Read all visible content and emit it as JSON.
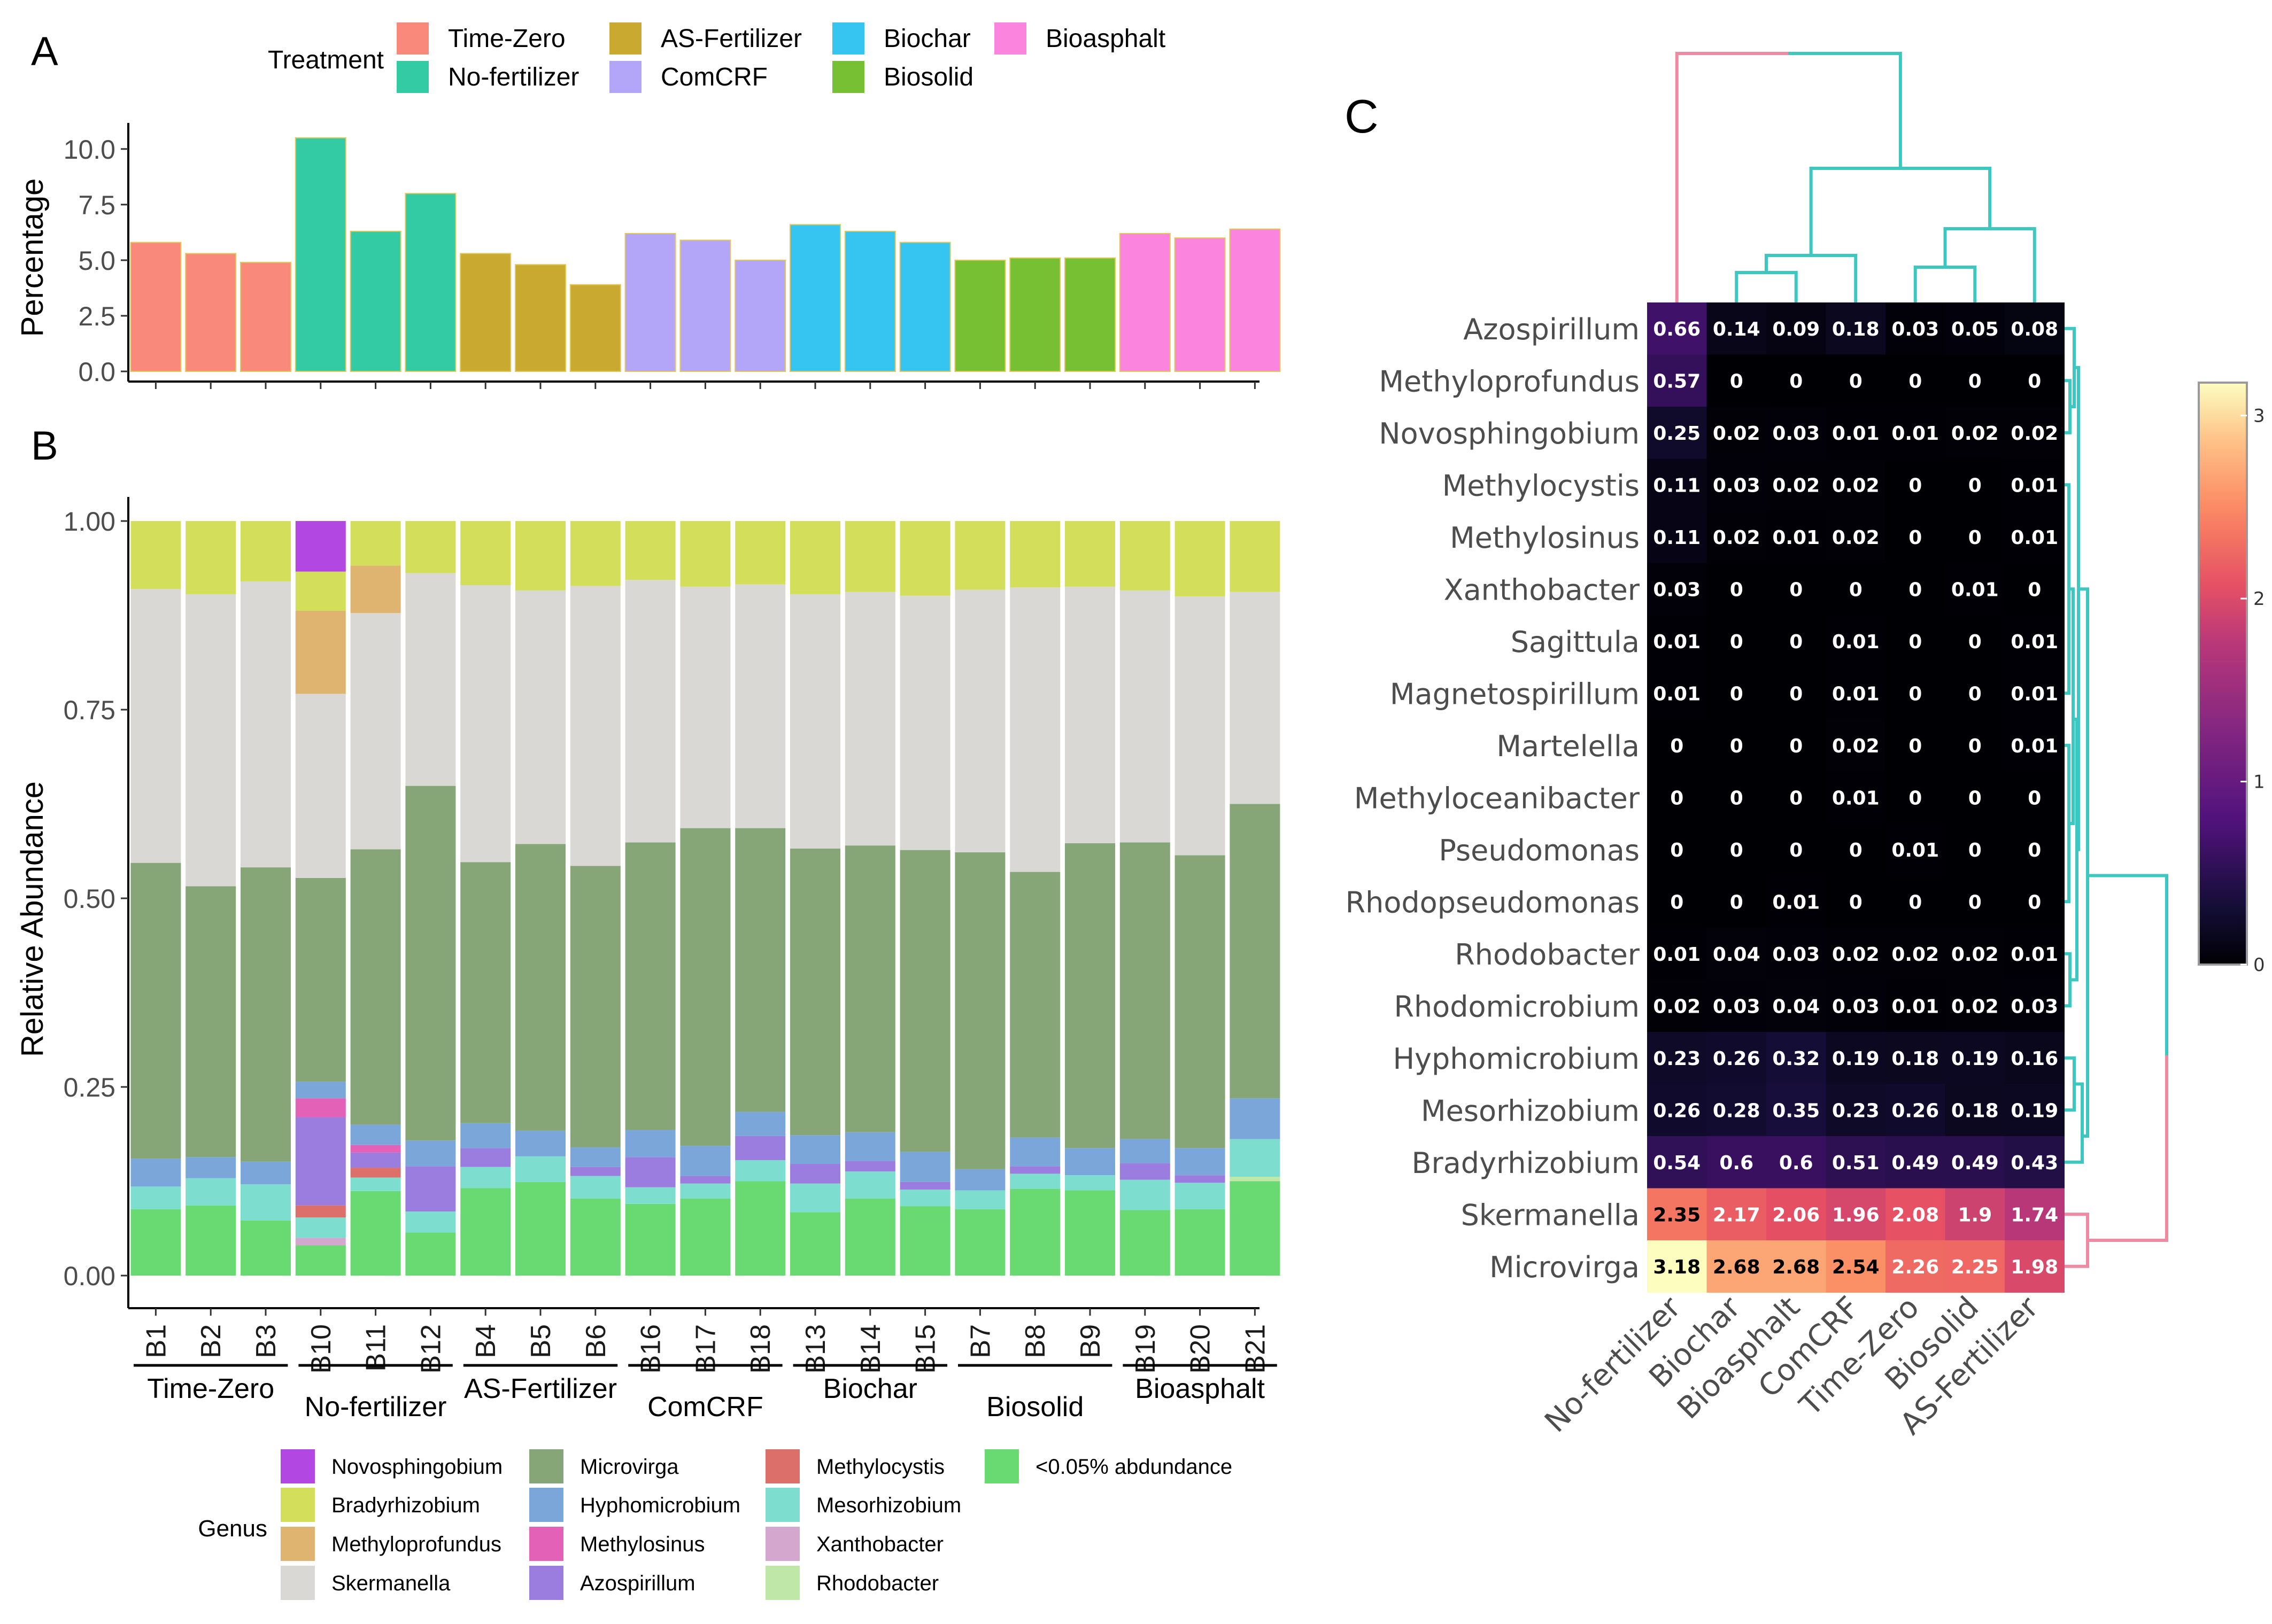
{
  "colors": {
    "Time-Zero": "#F8897B",
    "No-fertilizer": "#33CBA4",
    "AS-Fertilizer": "#C9A930",
    "ComCRF": "#B3A6F8",
    "Biochar": "#36C5F0",
    "Biosolid": "#77C033",
    "Bioasphalt": "#FA84DE",
    "genus": {
      "Novosphingobium": "#B247E1",
      "Bradyrhizobium": "#D3DF5A",
      "Methyloprofundus": "#DEB470",
      "Skermanella": "#DAD8D5",
      "Microvirga": "#87A678",
      "Hyphomicrobium": "#7AA6DA",
      "Methylosinus": "#E361B6",
      "Azospirillum": "#9B7DE0",
      "Methylocystis": "#DD6F6B",
      "Mesorhizobium": "#7DDED0",
      "Xanthobacter": "#D4A7CF",
      "Rhodobacter": "#BFE7A8",
      "<0.05% abdundance": "#69D971"
    },
    "dendro_pink": "#EF8AA3",
    "dendro_teal": "#3CC8C0"
  },
  "chart_data": [
    {
      "panel": "A",
      "type": "bar",
      "ylabel": "Percentage",
      "ylim": [
        0,
        10.5
      ],
      "yticks": [
        "0.0",
        "2.5",
        "5.0",
        "7.5",
        "10.0"
      ],
      "legend_title": "Treatment",
      "legend": [
        "Time-Zero",
        "No-fertilizer",
        "AS-Fertilizer",
        "ComCRF",
        "Biochar",
        "Biosolid",
        "Bioasphalt"
      ],
      "categories": [
        "B1",
        "B2",
        "B3",
        "B10",
        "B11",
        "B12",
        "B4",
        "B5",
        "B6",
        "B16",
        "B17",
        "B18",
        "B13",
        "B14",
        "B15",
        "B7",
        "B8",
        "B9",
        "B19",
        "B20",
        "B21"
      ],
      "groups": [
        "Time-Zero",
        "Time-Zero",
        "Time-Zero",
        "No-fertilizer",
        "No-fertilizer",
        "No-fertilizer",
        "AS-Fertilizer",
        "AS-Fertilizer",
        "AS-Fertilizer",
        "ComCRF",
        "ComCRF",
        "ComCRF",
        "Biochar",
        "Biochar",
        "Biochar",
        "Biosolid",
        "Biosolid",
        "Biosolid",
        "Bioasphalt",
        "Bioasphalt",
        "Bioasphalt"
      ],
      "values": [
        5.8,
        5.3,
        4.9,
        10.5,
        6.3,
        8.0,
        5.3,
        4.8,
        3.9,
        6.2,
        5.9,
        5.0,
        6.6,
        6.3,
        5.8,
        5.0,
        5.1,
        5.1,
        6.2,
        6.0,
        6.4
      ]
    },
    {
      "panel": "B",
      "type": "bar",
      "stacked": true,
      "ylabel": "Relative Abundance",
      "ylim": [
        0,
        1
      ],
      "yticks": [
        "0.00",
        "0.25",
        "0.50",
        "0.75",
        "1.00"
      ],
      "legend_title": "Genus",
      "legend": [
        "Novosphingobium",
        "Bradyrhizobium",
        "Methyloprofundus",
        "Skermanella",
        "Microvirga",
        "Hyphomicrobium",
        "Methylosinus",
        "Azospirillum",
        "Methylocystis",
        "Mesorhizobium",
        "Xanthobacter",
        "Rhodobacter",
        "<0.05% abdundance"
      ],
      "categories": [
        "B1",
        "B2",
        "B3",
        "B10",
        "B11",
        "B12",
        "B4",
        "B5",
        "B6",
        "B16",
        "B17",
        "B18",
        "B13",
        "B14",
        "B15",
        "B7",
        "B8",
        "B9",
        "B19",
        "B20",
        "B21"
      ],
      "group_labels": [
        "Time-Zero",
        "No-fertilizer",
        "AS-Fertilizer",
        "ComCRF",
        "Biochar",
        "Biosolid",
        "Bioasphalt"
      ],
      "stack_order": [
        "<0.05% abdundance",
        "Rhodobacter",
        "Xanthobacter",
        "Mesorhizobium",
        "Methylocystis",
        "Azospirillum",
        "Methylosinus",
        "Hyphomicrobium",
        "Microvirga",
        "Skermanella",
        "Methyloprofundus",
        "Bradyrhizobium",
        "Novosphingobium"
      ],
      "series": [
        {
          "name": "<0.05% abdundance",
          "values": [
            0.088,
            0.093,
            0.073,
            0.04,
            0.112,
            0.057,
            0.116,
            0.124,
            0.102,
            0.095,
            0.102,
            0.125,
            0.084,
            0.102,
            0.092,
            0.088,
            0.115,
            0.113,
            0.087,
            0.088,
            0.125
          ]
        },
        {
          "name": "Rhodobacter",
          "values": [
            0,
            0,
            0,
            0,
            0,
            0,
            0,
            0,
            0,
            0,
            0,
            0,
            0,
            0,
            0,
            0,
            0,
            0,
            0,
            0,
            0.006
          ]
        },
        {
          "name": "Xanthobacter",
          "values": [
            0,
            0,
            0,
            0.01,
            0,
            0,
            0,
            0,
            0,
            0,
            0,
            0,
            0,
            0,
            0,
            0,
            0,
            0,
            0,
            0,
            0
          ]
        },
        {
          "name": "Mesorhizobium",
          "values": [
            0.03,
            0.036,
            0.048,
            0.027,
            0.018,
            0.028,
            0.028,
            0.034,
            0.03,
            0.022,
            0.02,
            0.028,
            0.038,
            0.036,
            0.022,
            0.025,
            0.02,
            0.02,
            0.04,
            0.035,
            0.05
          ]
        },
        {
          "name": "Methylocystis",
          "values": [
            0,
            0,
            0,
            0.016,
            0.013,
            0,
            0,
            0,
            0,
            0,
            0,
            0,
            0,
            0,
            0,
            0,
            0,
            0,
            0,
            0,
            0
          ]
        },
        {
          "name": "Azospirillum",
          "values": [
            0,
            0,
            0,
            0.117,
            0.02,
            0.06,
            0.025,
            0,
            0.012,
            0.04,
            0.01,
            0.032,
            0.026,
            0.014,
            0.01,
            0,
            0.01,
            0,
            0.022,
            0.01,
            0
          ]
        },
        {
          "name": "Methylosinus",
          "values": [
            0,
            0,
            0,
            0.025,
            0.01,
            0,
            0,
            0,
            0,
            0,
            0,
            0,
            0,
            0,
            0,
            0,
            0,
            0,
            0,
            0,
            0
          ]
        },
        {
          "name": "Hyphomicrobium",
          "values": [
            0.037,
            0.028,
            0.03,
            0.022,
            0.027,
            0.034,
            0.033,
            0.034,
            0.026,
            0.036,
            0.04,
            0.032,
            0.038,
            0.038,
            0.04,
            0.028,
            0.038,
            0.036,
            0.032,
            0.036,
            0.054
          ]
        },
        {
          "name": "Microvirga",
          "values": [
            0.392,
            0.359,
            0.39,
            0.27,
            0.365,
            0.47,
            0.346,
            0.38,
            0.373,
            0.381,
            0.421,
            0.376,
            0.38,
            0.38,
            0.4,
            0.42,
            0.352,
            0.404,
            0.393,
            0.388,
            0.39
          ]
        },
        {
          "name": "Skermanella",
          "values": [
            0.363,
            0.387,
            0.379,
            0.244,
            0.313,
            0.282,
            0.367,
            0.336,
            0.371,
            0.348,
            0.32,
            0.323,
            0.337,
            0.336,
            0.337,
            0.348,
            0.377,
            0.34,
            0.334,
            0.343,
            0.281
          ]
        },
        {
          "name": "Methyloprofundus",
          "values": [
            0,
            0,
            0,
            0.11,
            0.063,
            0,
            0,
            0,
            0,
            0,
            0,
            0,
            0,
            0,
            0,
            0,
            0,
            0,
            0,
            0,
            0
          ]
        },
        {
          "name": "Bradyrhizobium",
          "values": [
            0.09,
            0.097,
            0.08,
            0.052,
            0.059,
            0.069,
            0.085,
            0.092,
            0.086,
            0.078,
            0.087,
            0.084,
            0.097,
            0.094,
            0.099,
            0.091,
            0.088,
            0.087,
            0.092,
            0.1,
            0.094
          ]
        },
        {
          "name": "Novosphingobium",
          "values": [
            0,
            0,
            0,
            0.067,
            0,
            0,
            0,
            0,
            0,
            0,
            0,
            0,
            0,
            0,
            0,
            0,
            0,
            0,
            0,
            0,
            0
          ]
        }
      ]
    },
    {
      "panel": "C",
      "type": "heatmap",
      "x": [
        "No-fertilizer",
        "Biochar",
        "Bioasphalt",
        "ComCRF",
        "Time-Zero",
        "Biosolid",
        "AS-Fertilizer"
      ],
      "y": [
        "Azospirillum",
        "Methyloprofundus",
        "Novosphingobium",
        "Methylocystis",
        "Methylosinus",
        "Xanthobacter",
        "Sagittula",
        "Magnetospirillum",
        "Martelella",
        "Methyloceanibacter",
        "Pseudomonas",
        "Rhodopseudomonas",
        "Rhodobacter",
        "Rhodomicrobium",
        "Hyphomicrobium",
        "Mesorhizobium",
        "Bradyrhizobium",
        "Skermanella",
        "Microvirga"
      ],
      "values": [
        [
          0.66,
          0.14,
          0.09,
          0.18,
          0.03,
          0.05,
          0.08
        ],
        [
          0.57,
          0,
          0,
          0,
          0,
          0,
          0
        ],
        [
          0.25,
          0.02,
          0.03,
          0.01,
          0.01,
          0.02,
          0.02
        ],
        [
          0.11,
          0.03,
          0.02,
          0.02,
          0,
          0,
          0.01
        ],
        [
          0.11,
          0.02,
          0.01,
          0.02,
          0,
          0,
          0.01
        ],
        [
          0.03,
          0,
          0,
          0,
          0,
          0.01,
          0
        ],
        [
          0.01,
          0,
          0,
          0.01,
          0,
          0,
          0.01
        ],
        [
          0.01,
          0,
          0,
          0.01,
          0,
          0,
          0.01
        ],
        [
          0,
          0,
          0,
          0.02,
          0,
          0,
          0.01
        ],
        [
          0,
          0,
          0,
          0.01,
          0,
          0,
          0
        ],
        [
          0,
          0,
          0,
          0,
          0.01,
          0,
          0
        ],
        [
          0,
          0,
          0.01,
          0,
          0,
          0,
          0
        ],
        [
          0.01,
          0.04,
          0.03,
          0.02,
          0.02,
          0.02,
          0.01
        ],
        [
          0.02,
          0.03,
          0.04,
          0.03,
          0.01,
          0.02,
          0.03
        ],
        [
          0.23,
          0.26,
          0.32,
          0.19,
          0.18,
          0.19,
          0.16
        ],
        [
          0.26,
          0.28,
          0.35,
          0.23,
          0.26,
          0.18,
          0.19
        ],
        [
          0.54,
          0.6,
          0.6,
          0.51,
          0.49,
          0.49,
          0.43
        ],
        [
          2.35,
          2.17,
          2.06,
          1.96,
          2.08,
          1.9,
          1.74
        ],
        [
          3.18,
          2.68,
          2.68,
          2.54,
          2.26,
          2.25,
          1.98
        ]
      ],
      "colorbar": {
        "min": 0,
        "max": 3.18,
        "ticks": [
          "0",
          "1",
          "2",
          "3"
        ]
      }
    }
  ],
  "panels": {
    "a": "A",
    "b": "B",
    "c": "C"
  }
}
